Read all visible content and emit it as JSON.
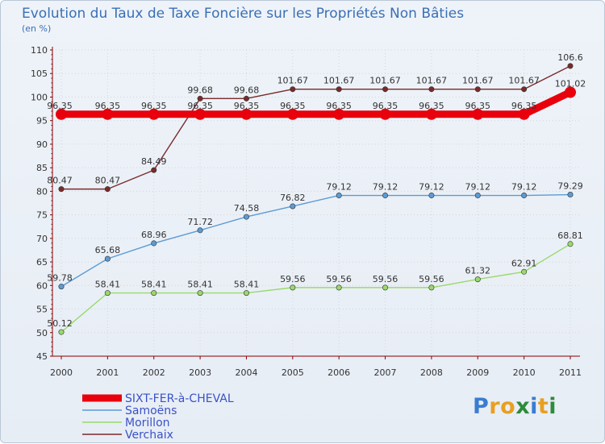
{
  "chart_data": {
    "type": "line",
    "title": "Evolution du Taux de Taxe Foncière sur les Propriétés Non Bâties",
    "subtitle": "(en %)",
    "xlabel": "",
    "ylabel": "(en %)",
    "ylim": [
      45,
      110
    ],
    "yticks": [
      45,
      50,
      55,
      60,
      65,
      70,
      75,
      80,
      85,
      90,
      95,
      100,
      105,
      110
    ],
    "categories": [
      "2000",
      "2001",
      "2002",
      "2003",
      "2004",
      "2005",
      "2006",
      "2007",
      "2008",
      "2009",
      "2010",
      "2011"
    ],
    "grid": true,
    "legend_position": "bottom-left",
    "series": [
      {
        "name": "Verchaix",
        "color": "#7a2a2a",
        "values": [
          80.47,
          80.47,
          84.49,
          99.68,
          99.68,
          101.67,
          101.67,
          101.67,
          101.67,
          101.67,
          101.67,
          106.6
        ],
        "labels": [
          "80.47",
          "80.47",
          "84.49",
          "99.68",
          "99.68",
          "101.67",
          "101.67",
          "101.67",
          "101.67",
          "101.67",
          "101.67",
          "106.6"
        ]
      },
      {
        "name": "Samoëns",
        "color": "#5b9bd5",
        "values": [
          59.78,
          65.68,
          68.96,
          71.72,
          74.58,
          76.82,
          79.12,
          79.12,
          79.12,
          79.12,
          79.12,
          79.29
        ],
        "labels": [
          "59.78",
          "65.68",
          "68.96",
          "71.72",
          "74.58",
          "76.82",
          "79.12",
          "79.12",
          "79.12",
          "79.12",
          "79.12",
          "79.29"
        ]
      },
      {
        "name": "Morillon",
        "color": "#99d96b",
        "values": [
          50.12,
          58.41,
          58.41,
          58.41,
          58.41,
          59.56,
          59.56,
          59.56,
          59.56,
          61.32,
          62.91,
          68.81
        ],
        "labels": [
          "50.12",
          "58.41",
          "58.41",
          "58.41",
          "58.41",
          "59.56",
          "59.56",
          "59.56",
          "59.56",
          "61.32",
          "62.91",
          "68.81"
        ]
      },
      {
        "name": "SIXT-FER-à-CHEVAL",
        "color": "#e8000d",
        "values": [
          96.35,
          96.35,
          96.35,
          96.35,
          96.35,
          96.35,
          96.35,
          96.35,
          96.35,
          96.35,
          96.35,
          101.02
        ],
        "labels": [
          "96.35",
          "96.35",
          "96.35",
          "96.35",
          "96.35",
          "96.35",
          "96.35",
          "96.35",
          "96.35",
          "96.35",
          "96.35",
          "101.02"
        ]
      }
    ],
    "legend": [
      {
        "name": "SIXT-FER-à-CHEVAL",
        "color": "#e8000d"
      },
      {
        "name": "Samoëns",
        "color": "#5b9bd5"
      },
      {
        "name": "Morillon",
        "color": "#99d96b"
      },
      {
        "name": "Verchaix",
        "color": "#7a2a2a"
      }
    ]
  },
  "branding": {
    "logo_letters": [
      {
        "char": "P",
        "color": "#3a7dd0"
      },
      {
        "char": "r",
        "color": "#e8a020"
      },
      {
        "char": "o",
        "color": "#e8a020"
      },
      {
        "char": "x",
        "color": "#2e8b3a"
      },
      {
        "char": "i",
        "color": "#3a7dd0"
      },
      {
        "char": "t",
        "color": "#e8a020"
      },
      {
        "char": "i",
        "color": "#2e8b3a"
      }
    ]
  }
}
